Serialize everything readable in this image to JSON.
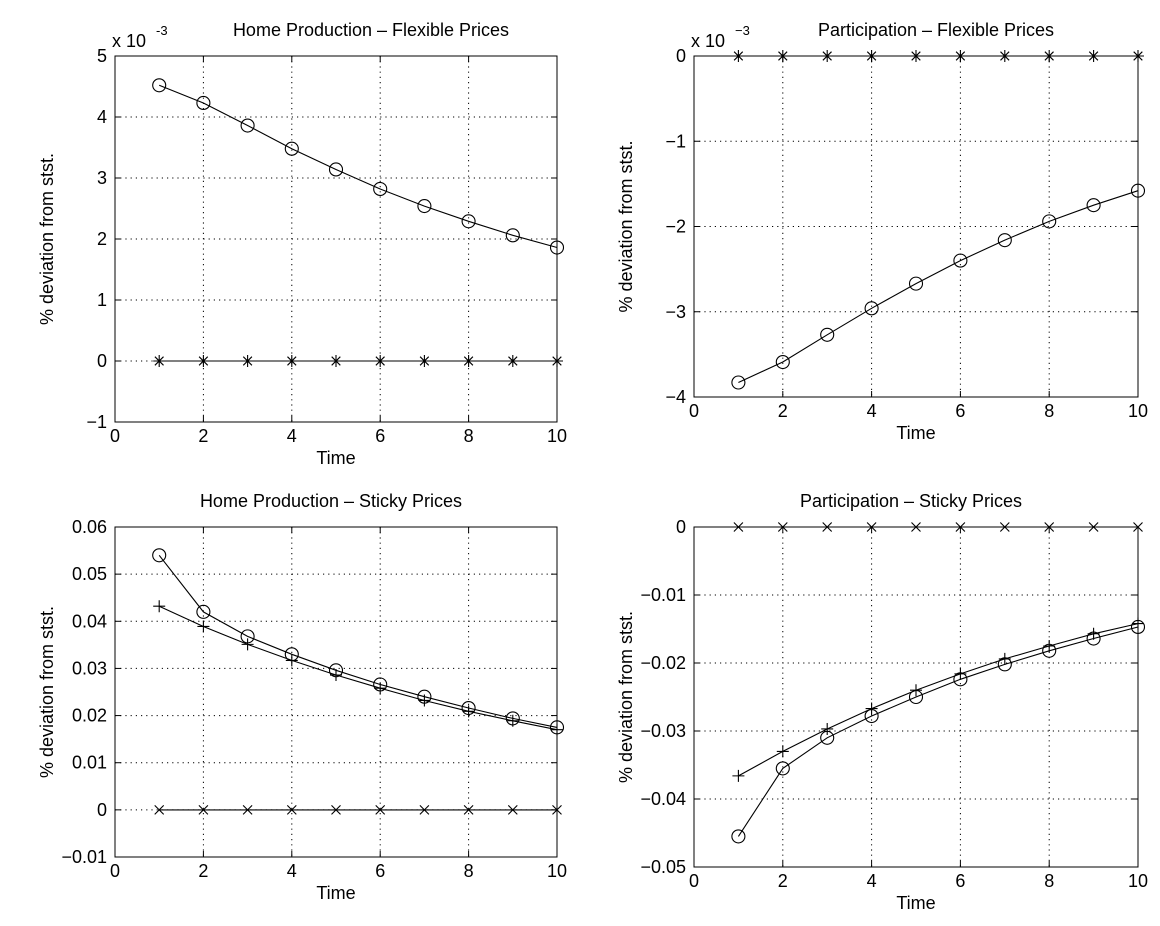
{
  "chart_data": [
    {
      "type": "line",
      "title": "Home Production – Flexible Prices",
      "xlabel": "Time",
      "ylabel": "% deviation from stst.",
      "scale_label": "x 10",
      "scale_exp": "-3",
      "xlim": [
        0,
        10
      ],
      "ylim": [
        -1,
        5
      ],
      "xticks": [
        0,
        2,
        4,
        6,
        8,
        10
      ],
      "yticks": [
        -1,
        0,
        1,
        2,
        3,
        4,
        5
      ],
      "xtick_labels": [
        "0",
        "2",
        "4",
        "6",
        "8",
        "10"
      ],
      "ytick_labels": [
        "−1",
        "0",
        "1",
        "2",
        "3",
        "4",
        "5"
      ],
      "grid": true,
      "x": [
        1,
        2,
        3,
        4,
        5,
        6,
        7,
        8,
        9,
        10
      ],
      "series": [
        {
          "marker": "circle",
          "values": [
            4.52,
            4.23,
            3.86,
            3.48,
            3.14,
            2.82,
            2.54,
            2.29,
            2.06,
            1.86
          ]
        },
        {
          "marker": "star",
          "values": [
            0,
            0,
            0,
            0,
            0,
            0,
            0,
            0,
            0,
            0
          ]
        }
      ]
    },
    {
      "type": "line",
      "title": "Participation – Flexible Prices",
      "xlabel": "Time",
      "ylabel": "% deviation from stst.",
      "scale_label": "x 10",
      "scale_exp": "−3",
      "xlim": [
        0,
        10
      ],
      "ylim": [
        -4,
        0
      ],
      "xticks": [
        0,
        2,
        4,
        6,
        8,
        10
      ],
      "yticks": [
        -4,
        -3,
        -2,
        -1,
        0
      ],
      "xtick_labels": [
        "0",
        "2",
        "4",
        "6",
        "8",
        "10"
      ],
      "ytick_labels": [
        "−4",
        "−3",
        "−2",
        "−1",
        "0"
      ],
      "grid": true,
      "x": [
        1,
        2,
        3,
        4,
        5,
        6,
        7,
        8,
        9,
        10
      ],
      "series": [
        {
          "marker": "circle",
          "values": [
            -3.83,
            -3.59,
            -3.27,
            -2.96,
            -2.67,
            -2.4,
            -2.16,
            -1.94,
            -1.75,
            -1.58
          ]
        },
        {
          "marker": "star",
          "values": [
            0,
            0,
            0,
            0,
            0,
            0,
            0,
            0,
            0,
            0
          ]
        }
      ]
    },
    {
      "type": "line",
      "title": "Home Production – Sticky Prices",
      "xlabel": "Time",
      "ylabel": "% deviation from stst.",
      "xlim": [
        0,
        10
      ],
      "ylim": [
        -0.01,
        0.06
      ],
      "xticks": [
        0,
        2,
        4,
        6,
        8,
        10
      ],
      "yticks": [
        -0.01,
        0,
        0.01,
        0.02,
        0.03,
        0.04,
        0.05,
        0.06
      ],
      "xtick_labels": [
        "0",
        "2",
        "4",
        "6",
        "8",
        "10"
      ],
      "ytick_labels": [
        "−0.01",
        "0",
        "0.01",
        "0.02",
        "0.03",
        "0.04",
        "0.05",
        "0.06"
      ],
      "grid": true,
      "x": [
        1,
        2,
        3,
        4,
        5,
        6,
        7,
        8,
        9,
        10
      ],
      "series": [
        {
          "marker": "circle",
          "values": [
            0.054,
            0.042,
            0.0368,
            0.033,
            0.0296,
            0.0266,
            0.024,
            0.0216,
            0.0194,
            0.0175
          ]
        },
        {
          "marker": "plus",
          "values": [
            0.0432,
            0.0389,
            0.0351,
            0.0317,
            0.0286,
            0.0258,
            0.0232,
            0.0209,
            0.0189,
            0.017
          ]
        },
        {
          "marker": "x",
          "values": [
            0,
            0,
            0,
            0,
            0,
            0,
            0,
            0,
            0,
            0
          ]
        }
      ]
    },
    {
      "type": "line",
      "title": "Participation – Sticky Prices",
      "xlabel": "Time",
      "ylabel": "% deviation from stst.",
      "xlim": [
        0,
        10
      ],
      "ylim": [
        -0.05,
        0
      ],
      "xticks": [
        0,
        2,
        4,
        6,
        8,
        10
      ],
      "yticks": [
        -0.05,
        -0.04,
        -0.03,
        -0.02,
        -0.01,
        0
      ],
      "xtick_labels": [
        "0",
        "2",
        "4",
        "6",
        "8",
        "10"
      ],
      "ytick_labels": [
        "−0.05",
        "−0.04",
        "−0.03",
        "−0.02",
        "−0.01",
        "0"
      ],
      "grid": true,
      "x": [
        1,
        2,
        3,
        4,
        5,
        6,
        7,
        8,
        9,
        10
      ],
      "series": [
        {
          "marker": "circle",
          "values": [
            -0.0455,
            -0.0355,
            -0.031,
            -0.0278,
            -0.025,
            -0.0224,
            -0.0202,
            -0.0182,
            -0.0164,
            -0.0147
          ]
        },
        {
          "marker": "plus",
          "values": [
            -0.0366,
            -0.033,
            -0.0297,
            -0.0267,
            -0.024,
            -0.0216,
            -0.0194,
            -0.0175,
            -0.0157,
            -0.0142
          ]
        },
        {
          "marker": "x",
          "values": [
            0,
            0,
            0,
            0,
            0,
            0,
            0,
            0,
            0,
            0
          ]
        }
      ]
    }
  ]
}
